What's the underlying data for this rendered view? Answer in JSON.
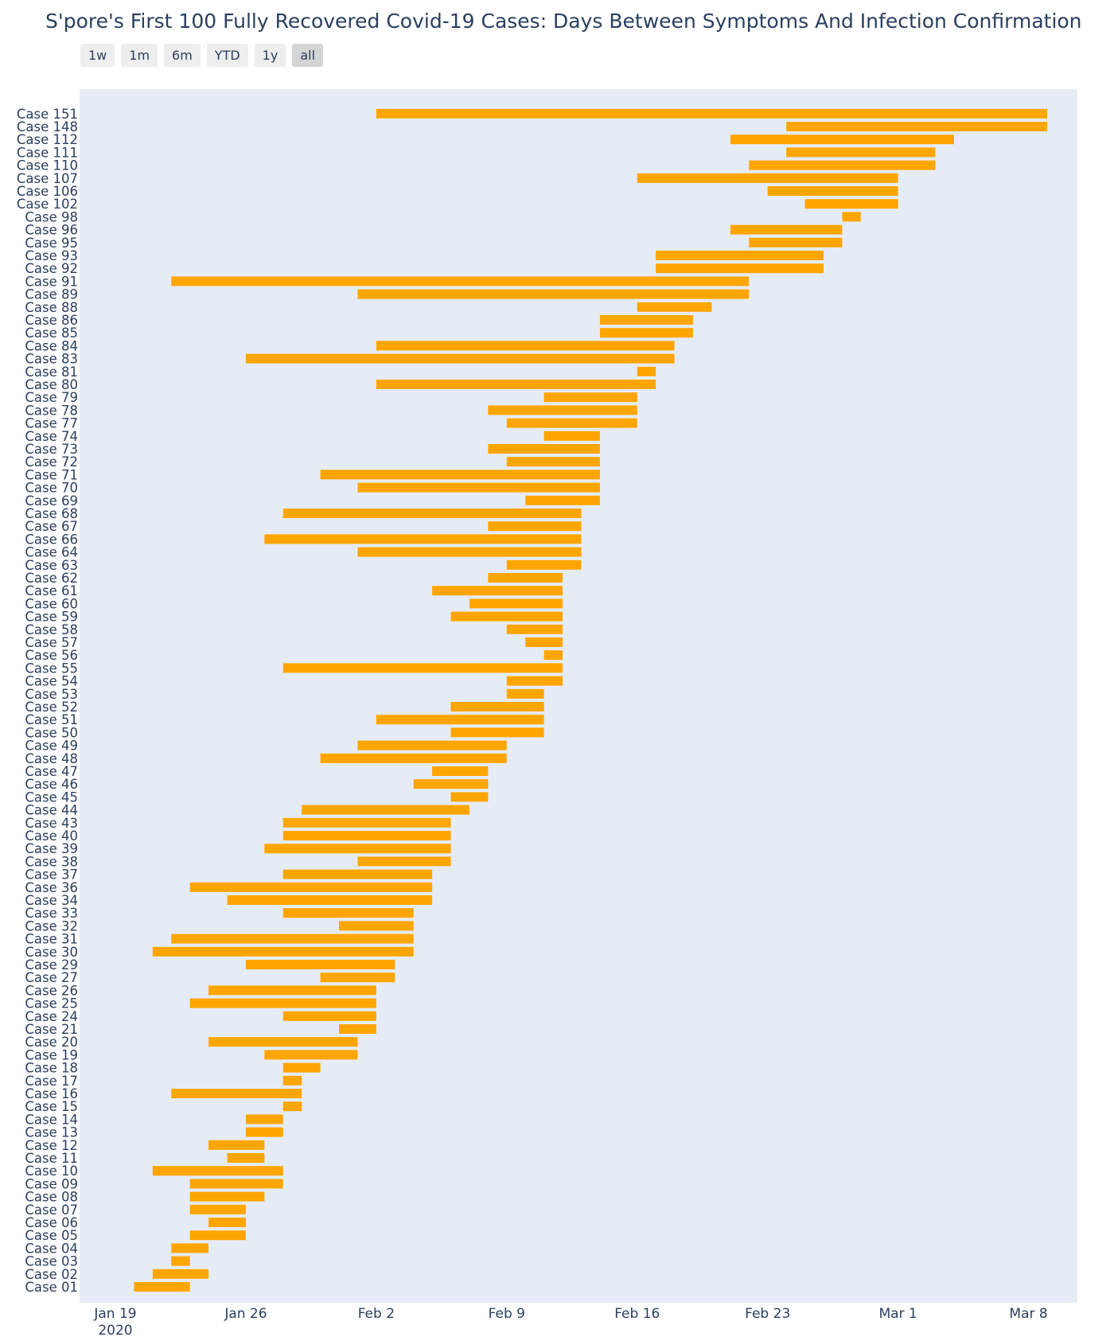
{
  "title": "S'pore's First 100 Fully Recovered Covid-19 Cases: Days Between Symptoms And Infection Confirmation",
  "range_buttons": [
    "1w",
    "1m",
    "6m",
    "YTD",
    "1y",
    "all"
  ],
  "active_range": "all",
  "colors": {
    "bar": "#ffa500",
    "plot_bg": "#e5ecf6",
    "text": "#2a3f5f"
  },
  "chart_data": {
    "type": "bar",
    "orientation": "horizontal-gantt",
    "title": "S'pore's First 100 Fully Recovered Covid-19 Cases: Days Between Symptoms And Infection Confirmation",
    "xlabel": "",
    "ylabel": "",
    "x_range": [
      "2020-01-19",
      "2020-03-09"
    ],
    "x_ticks": [
      "Jan 19",
      "Jan 26",
      "Feb 2",
      "Feb 9",
      "Feb 16",
      "Feb 23",
      "Mar 1",
      "Mar 8"
    ],
    "x_tick_dates": [
      "2020-01-19",
      "2020-01-26",
      "2020-02-02",
      "2020-02-09",
      "2020-02-16",
      "2020-02-23",
      "2020-03-01",
      "2020-03-08"
    ],
    "x_year_label": "2020",
    "grid": false,
    "categories": [
      "Case 01",
      "Case 02",
      "Case 03",
      "Case 04",
      "Case 05",
      "Case 06",
      "Case 07",
      "Case 08",
      "Case 09",
      "Case 10",
      "Case 11",
      "Case 12",
      "Case 13",
      "Case 14",
      "Case 15",
      "Case 16",
      "Case 17",
      "Case 18",
      "Case 19",
      "Case 20",
      "Case 21",
      "Case 24",
      "Case 25",
      "Case 26",
      "Case 27",
      "Case 29",
      "Case 30",
      "Case 31",
      "Case 32",
      "Case 33",
      "Case 34",
      "Case 36",
      "Case 37",
      "Case 38",
      "Case 39",
      "Case 40",
      "Case 43",
      "Case 44",
      "Case 45",
      "Case 46",
      "Case 47",
      "Case 48",
      "Case 49",
      "Case 50",
      "Case 51",
      "Case 52",
      "Case 53",
      "Case 54",
      "Case 55",
      "Case 56",
      "Case 57",
      "Case 58",
      "Case 59",
      "Case 60",
      "Case 61",
      "Case 62",
      "Case 63",
      "Case 64",
      "Case 66",
      "Case 67",
      "Case 68",
      "Case 69",
      "Case 70",
      "Case 71",
      "Case 72",
      "Case 73",
      "Case 74",
      "Case 77",
      "Case 78",
      "Case 79",
      "Case 80",
      "Case 81",
      "Case 83",
      "Case 84",
      "Case 85",
      "Case 86",
      "Case 88",
      "Case 89",
      "Case 91",
      "Case 92",
      "Case 93",
      "Case 95",
      "Case 96",
      "Case 98",
      "Case 102",
      "Case 106",
      "Case 107",
      "Case 110",
      "Case 111",
      "Case 112",
      "Case 148",
      "Case 151"
    ],
    "start": [
      "2020-01-20",
      "2020-01-21",
      "2020-01-22",
      "2020-01-22",
      "2020-01-23",
      "2020-01-24",
      "2020-01-23",
      "2020-01-23",
      "2020-01-23",
      "2020-01-21",
      "2020-01-25",
      "2020-01-24",
      "2020-01-26",
      "2020-01-26",
      "2020-01-28",
      "2020-01-22",
      "2020-01-28",
      "2020-01-28",
      "2020-01-27",
      "2020-01-24",
      "2020-01-31",
      "2020-01-28",
      "2020-01-23",
      "2020-01-24",
      "2020-01-30",
      "2020-01-26",
      "2020-01-21",
      "2020-01-22",
      "2020-01-31",
      "2020-01-28",
      "2020-01-25",
      "2020-01-23",
      "2020-01-28",
      "2020-02-01",
      "2020-01-27",
      "2020-01-28",
      "2020-01-28",
      "2020-01-29",
      "2020-02-06",
      "2020-02-04",
      "2020-02-05",
      "2020-01-30",
      "2020-02-01",
      "2020-02-06",
      "2020-02-02",
      "2020-02-06",
      "2020-02-09",
      "2020-02-09",
      "2020-01-28",
      "2020-02-11",
      "2020-02-10",
      "2020-02-09",
      "2020-02-06",
      "2020-02-07",
      "2020-02-05",
      "2020-02-08",
      "2020-02-09",
      "2020-02-01",
      "2020-01-27",
      "2020-02-08",
      "2020-01-28",
      "2020-02-10",
      "2020-02-01",
      "2020-01-30",
      "2020-02-09",
      "2020-02-08",
      "2020-02-11",
      "2020-02-09",
      "2020-02-08",
      "2020-02-11",
      "2020-02-02",
      "2020-02-16",
      "2020-01-26",
      "2020-02-02",
      "2020-02-14",
      "2020-02-14",
      "2020-02-16",
      "2020-02-01",
      "2020-01-22",
      "2020-02-17",
      "2020-02-17",
      "2020-02-22",
      "2020-02-21",
      "2020-02-27",
      "2020-02-25",
      "2020-02-23",
      "2020-02-16",
      "2020-02-22",
      "2020-02-24",
      "2020-02-21",
      "2020-02-24",
      "2020-02-02"
    ],
    "end": [
      "2020-01-23",
      "2020-01-24",
      "2020-01-23",
      "2020-01-24",
      "2020-01-26",
      "2020-01-26",
      "2020-01-26",
      "2020-01-27",
      "2020-01-28",
      "2020-01-28",
      "2020-01-27",
      "2020-01-27",
      "2020-01-28",
      "2020-01-28",
      "2020-01-29",
      "2020-01-29",
      "2020-01-29",
      "2020-01-30",
      "2020-02-01",
      "2020-02-01",
      "2020-02-02",
      "2020-02-02",
      "2020-02-02",
      "2020-02-02",
      "2020-02-03",
      "2020-02-03",
      "2020-02-04",
      "2020-02-04",
      "2020-02-04",
      "2020-02-04",
      "2020-02-05",
      "2020-02-05",
      "2020-02-05",
      "2020-02-06",
      "2020-02-06",
      "2020-02-06",
      "2020-02-06",
      "2020-02-07",
      "2020-02-08",
      "2020-02-08",
      "2020-02-08",
      "2020-02-09",
      "2020-02-09",
      "2020-02-11",
      "2020-02-11",
      "2020-02-11",
      "2020-02-11",
      "2020-02-12",
      "2020-02-12",
      "2020-02-12",
      "2020-02-12",
      "2020-02-12",
      "2020-02-12",
      "2020-02-12",
      "2020-02-12",
      "2020-02-12",
      "2020-02-13",
      "2020-02-13",
      "2020-02-13",
      "2020-02-13",
      "2020-02-13",
      "2020-02-14",
      "2020-02-14",
      "2020-02-14",
      "2020-02-14",
      "2020-02-14",
      "2020-02-14",
      "2020-02-16",
      "2020-02-16",
      "2020-02-16",
      "2020-02-17",
      "2020-02-17",
      "2020-02-18",
      "2020-02-18",
      "2020-02-19",
      "2020-02-19",
      "2020-02-20",
      "2020-02-22",
      "2020-02-22",
      "2020-02-26",
      "2020-02-26",
      "2020-02-27",
      "2020-02-27",
      "2020-02-28",
      "2020-03-01",
      "2020-03-01",
      "2020-03-01",
      "2020-03-03",
      "2020-03-03",
      "2020-03-04",
      "2020-03-09",
      "2020-03-09"
    ]
  }
}
